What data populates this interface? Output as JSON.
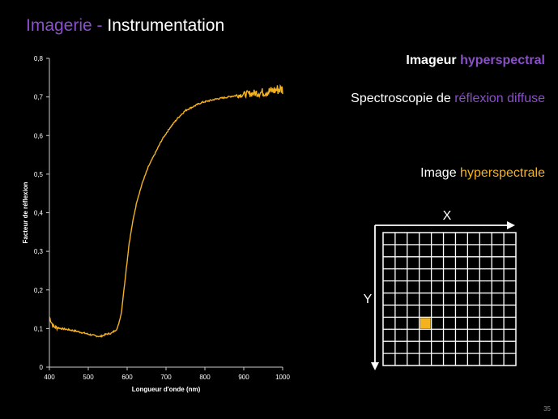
{
  "slide": {
    "title_part1": "Imagerie - ",
    "title_part2": "Instrumentation",
    "page_number": "35"
  },
  "right_panel": {
    "line1_a": "Imageur ",
    "line1_b": "hyperspectral",
    "line2_a": "Spectroscopie de ",
    "line2_b": "réflexion diffuse",
    "line3_a": "Image ",
    "line3_b": "hyperspectrale",
    "axis_x_label": "X",
    "axis_y_label": "Y",
    "grid_cells": 11,
    "highlight_cell": {
      "col": 3,
      "row": 7
    },
    "highlight_color": "#f5b220"
  },
  "chart_data": {
    "type": "line",
    "title": "",
    "xlabel": "Longueur d'onde (nm)",
    "ylabel": "Facteur de réflexion",
    "xlim": [
      400,
      1000
    ],
    "ylim": [
      0,
      0.8
    ],
    "xticks": [
      400,
      500,
      600,
      700,
      800,
      900,
      1000
    ],
    "yticks": [
      "0",
      "0,1",
      "0,2",
      "0,3",
      "0,4",
      "0,5",
      "0,6",
      "0,7",
      "0,8"
    ],
    "grid": false,
    "series": [
      {
        "color": "#f5b220",
        "x": [
          400,
          410,
          430,
          450,
          470,
          490,
          510,
          530,
          545,
          560,
          575,
          585,
          595,
          605,
          615,
          625,
          640,
          655,
          670,
          690,
          710,
          730,
          750,
          770,
          790,
          810,
          830,
          850,
          870,
          890,
          910,
          930,
          950,
          970,
          990,
          1000
        ],
        "y": [
          0.13,
          0.105,
          0.1,
          0.097,
          0.093,
          0.088,
          0.083,
          0.079,
          0.085,
          0.088,
          0.1,
          0.14,
          0.23,
          0.32,
          0.38,
          0.43,
          0.48,
          0.52,
          0.55,
          0.59,
          0.62,
          0.645,
          0.665,
          0.675,
          0.685,
          0.69,
          0.695,
          0.698,
          0.702,
          0.705,
          0.708,
          0.71,
          0.712,
          0.715,
          0.72,
          0.72
        ]
      }
    ]
  }
}
